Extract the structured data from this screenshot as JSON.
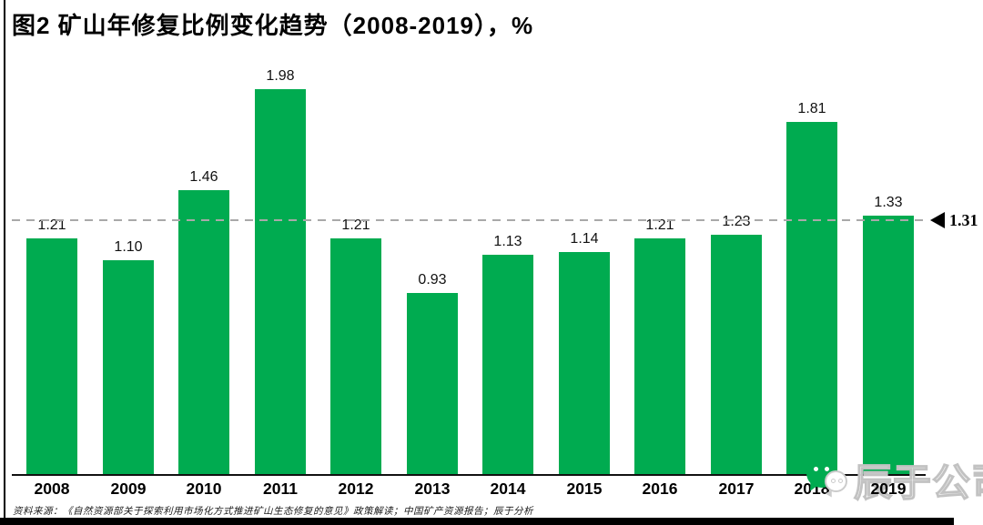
{
  "title": "图2 矿山年修复比例变化趋势（2008-2019），%",
  "chart_data": {
    "type": "bar",
    "title": "图2 矿山年修复比例变化趋势（2008-2019），%",
    "unit": "%",
    "categories": [
      "2008",
      "2009",
      "2010",
      "2011",
      "2012",
      "2013",
      "2014",
      "2015",
      "2016",
      "2017",
      "2018",
      "2019"
    ],
    "values": [
      1.21,
      1.1,
      1.46,
      1.98,
      1.21,
      0.93,
      1.13,
      1.14,
      1.21,
      1.23,
      1.81,
      1.33
    ],
    "value_labels": [
      "1.21",
      "1.10",
      "1.46",
      "1.98",
      "1.21",
      "0.93",
      "1.13",
      "1.14",
      "1.21",
      "1.23",
      "1.81",
      "1.33"
    ],
    "xlabel": "",
    "ylabel": "",
    "ylim": [
      0,
      2.2
    ],
    "grid": false,
    "legend": false,
    "bar_color": "#00ab50",
    "reference_line": {
      "value": 1.31,
      "label": "1.31",
      "style": "dashed",
      "color": "#a9a9a9"
    }
  },
  "footer": {
    "source": "资料来源：《自然资源部关于探索利用市场化方式推进矿山生态修复的意见》政策解读；中国矿产资源报告；辰于分析"
  },
  "watermark": {
    "icon": "wechat-icon",
    "text": "辰于公司"
  }
}
